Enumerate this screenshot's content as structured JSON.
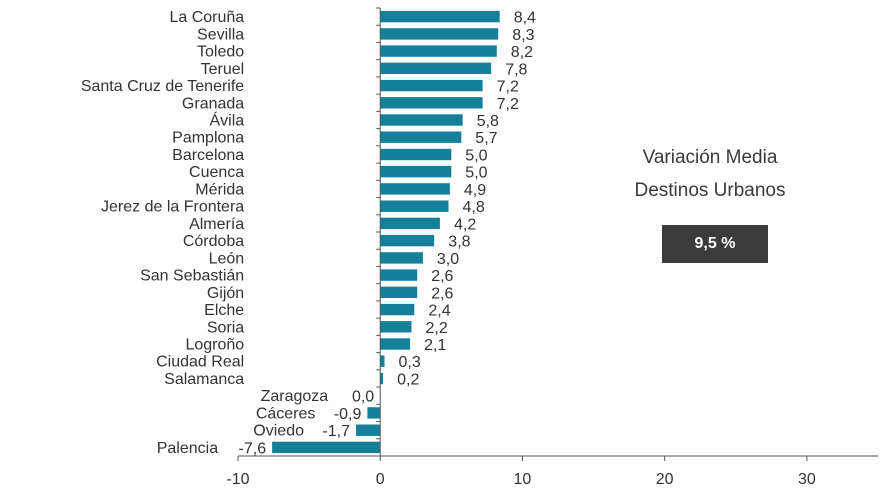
{
  "chart_data": {
    "type": "bar",
    "orientation": "horizontal",
    "categories": [
      "La Coruña",
      "Sevilla",
      "Toledo",
      "Teruel",
      "Santa Cruz de Tenerife",
      "Granada",
      "Ávila",
      "Pamplona",
      "Barcelona",
      "Cuenca",
      "Mérida",
      "Jerez de la Frontera",
      "Almería",
      "Córdoba",
      "León",
      "San Sebastián",
      "Gijón",
      "Elche",
      "Soria",
      "Logroño",
      "Ciudad Real",
      "Salamanca",
      "Zaragoza",
      "Cáceres",
      "Oviedo",
      "Palencia"
    ],
    "values": [
      8.4,
      8.3,
      8.2,
      7.8,
      7.2,
      7.2,
      5.8,
      5.7,
      5.0,
      5.0,
      4.9,
      4.8,
      4.2,
      3.8,
      3.0,
      2.6,
      2.6,
      2.4,
      2.2,
      2.1,
      0.3,
      0.2,
      0.0,
      -0.9,
      -1.7,
      -7.6
    ],
    "value_labels": [
      "8,4",
      "8,3",
      "8,2",
      "7,8",
      "7,2",
      "7,2",
      "5,8",
      "5,7",
      "5,0",
      "5,0",
      "4,9",
      "4,8",
      "4,2",
      "3,8",
      "3,0",
      "2,6",
      "2,6",
      "2,4",
      "2,2",
      "2,1",
      "0,3",
      "0,2",
      "0,0",
      "-0,9",
      "-1,7",
      "-7,6"
    ],
    "xlim": [
      -10,
      35
    ],
    "xticks": [
      -10,
      0,
      10,
      20,
      30
    ],
    "xtick_labels": [
      "-10",
      "0",
      "10",
      "20",
      "30"
    ],
    "grid": false,
    "bar_color": "#15809a",
    "annotation": {
      "line1": "Variación Media",
      "line2": "Destinos Urbanos",
      "box_value": "9,5 %",
      "box_color": "#3b3b3b"
    }
  }
}
